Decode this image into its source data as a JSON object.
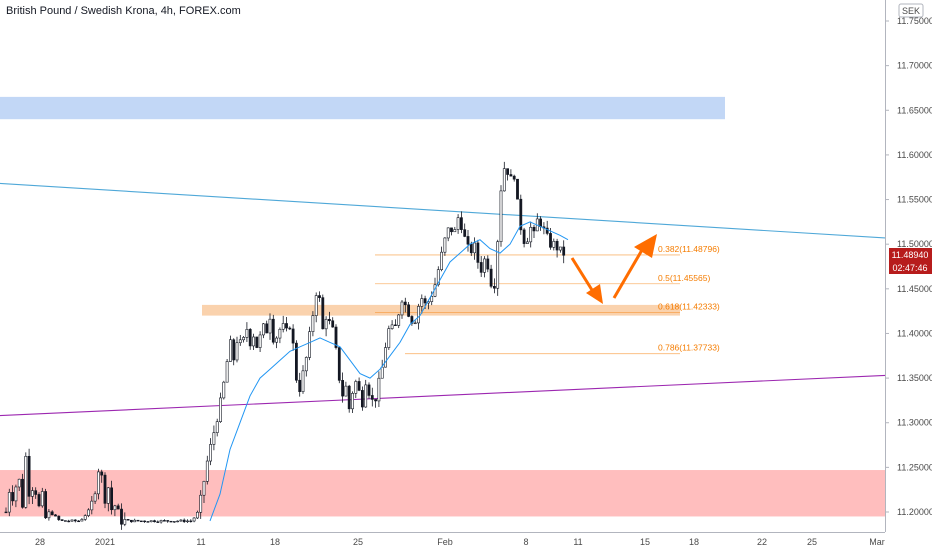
{
  "header": {
    "title": "British Pound / Swedish Krona, 4h, FOREX.com"
  },
  "price_axis": {
    "currency": "SEK",
    "current_price_label": "11.48940",
    "countdown_label": "02:47:46"
  },
  "colors": {
    "candle_up": "#ffffff",
    "candle_down": "#131722",
    "ma_line": "#2196f3",
    "upper_trendline": "#4fa8d8",
    "lower_trendline": "#9c27b0",
    "resistance_zone": "#bbd3f5",
    "support_zone": "#ffb3b3",
    "fib_zone": "#f9cda4",
    "fib_text": "#f57c00",
    "arrow": "#ff6d00",
    "price_tag": "#b71c1c"
  },
  "chart_data": {
    "type": "candlestick",
    "title": "British Pound / Swedish Krona, 4h, FOREX.com",
    "ylim": [
      11.18,
      11.78
    ],
    "y_ticks": [
      "11.20000",
      "11.25000",
      "11.30000",
      "11.35000",
      "11.40000",
      "11.45000",
      "11.50000",
      "11.55000",
      "11.60000",
      "11.65000",
      "11.70000",
      "11.75000"
    ],
    "x_ticks": [
      "28",
      "2021",
      "11",
      "18",
      "25",
      "Feb",
      "8",
      "11",
      "15",
      "18",
      "22",
      "25",
      "Mar"
    ],
    "price_path": [
      [
        0,
        11.195
      ],
      [
        6,
        11.2
      ],
      [
        10,
        11.23
      ],
      [
        14,
        11.21
      ],
      [
        18,
        11.25
      ],
      [
        22,
        11.2
      ],
      [
        26,
        11.265
      ],
      [
        30,
        11.21
      ],
      [
        34,
        11.24
      ],
      [
        38,
        11.2
      ],
      [
        42,
        11.22
      ],
      [
        46,
        11.19
      ],
      [
        50,
        11.2
      ],
      [
        60,
        11.19
      ],
      [
        70,
        11.19
      ],
      [
        80,
        11.19
      ],
      [
        88,
        11.2
      ],
      [
        92,
        11.21
      ],
      [
        96,
        11.23
      ],
      [
        100,
        11.26
      ],
      [
        104,
        11.21
      ],
      [
        108,
        11.23
      ],
      [
        112,
        11.2
      ],
      [
        116,
        11.21
      ],
      [
        120,
        11.19
      ],
      [
        126,
        11.19
      ],
      [
        150,
        11.19
      ],
      [
        165,
        11.19
      ],
      [
        178,
        11.19
      ],
      [
        186,
        11.19
      ],
      [
        192,
        11.19
      ],
      [
        198,
        11.2
      ],
      [
        202,
        11.22
      ],
      [
        206,
        11.25
      ],
      [
        210,
        11.27
      ],
      [
        214,
        11.29
      ],
      [
        218,
        11.31
      ],
      [
        222,
        11.33
      ],
      [
        226,
        11.36
      ],
      [
        230,
        11.39
      ],
      [
        234,
        11.37
      ],
      [
        238,
        11.4
      ],
      [
        242,
        11.38
      ],
      [
        246,
        11.41
      ],
      [
        250,
        11.39
      ],
      [
        254,
        11.4
      ],
      [
        258,
        11.38
      ],
      [
        262,
        11.41
      ],
      [
        266,
        11.4
      ],
      [
        270,
        11.42
      ],
      [
        274,
        11.39
      ],
      [
        278,
        11.4
      ],
      [
        282,
        11.41
      ],
      [
        286,
        11.4
      ],
      [
        290,
        11.41
      ],
      [
        294,
        11.38
      ],
      [
        298,
        11.33
      ],
      [
        302,
        11.35
      ],
      [
        306,
        11.37
      ],
      [
        310,
        11.4
      ],
      [
        314,
        11.43
      ],
      [
        318,
        11.46
      ],
      [
        322,
        11.4
      ],
      [
        326,
        11.42
      ],
      [
        330,
        11.41
      ],
      [
        334,
        11.4
      ],
      [
        338,
        11.36
      ],
      [
        342,
        11.33
      ],
      [
        346,
        11.34
      ],
      [
        350,
        11.31
      ],
      [
        354,
        11.35
      ],
      [
        358,
        11.34
      ],
      [
        362,
        11.32
      ],
      [
        366,
        11.35
      ],
      [
        370,
        11.33
      ],
      [
        374,
        11.32
      ],
      [
        378,
        11.34
      ],
      [
        382,
        11.36
      ],
      [
        386,
        11.39
      ],
      [
        390,
        11.41
      ],
      [
        394,
        11.4
      ],
      [
        398,
        11.42
      ],
      [
        402,
        11.44
      ],
      [
        406,
        11.43
      ],
      [
        410,
        11.42
      ],
      [
        414,
        11.41
      ],
      [
        418,
        11.43
      ],
      [
        422,
        11.44
      ],
      [
        426,
        11.43
      ],
      [
        430,
        11.44
      ],
      [
        434,
        11.45
      ],
      [
        438,
        11.47
      ],
      [
        442,
        11.49
      ],
      [
        446,
        11.51
      ],
      [
        450,
        11.52
      ],
      [
        454,
        11.51
      ],
      [
        458,
        11.53
      ],
      [
        462,
        11.52
      ],
      [
        466,
        11.5
      ],
      [
        470,
        11.49
      ],
      [
        474,
        11.5
      ],
      [
        478,
        11.48
      ],
      [
        482,
        11.47
      ],
      [
        486,
        11.49
      ],
      [
        490,
        11.46
      ],
      [
        494,
        11.45
      ],
      [
        498,
        11.51
      ],
      [
        502,
        11.58
      ],
      [
        506,
        11.59
      ],
      [
        510,
        11.57
      ],
      [
        514,
        11.58
      ],
      [
        518,
        11.54
      ],
      [
        522,
        11.51
      ],
      [
        526,
        11.5
      ],
      [
        530,
        11.52
      ],
      [
        534,
        11.51
      ],
      [
        538,
        11.53
      ],
      [
        542,
        11.52
      ],
      [
        546,
        11.51
      ],
      [
        550,
        11.5
      ],
      [
        554,
        11.5
      ],
      [
        558,
        11.495
      ],
      [
        562,
        11.49
      ],
      [
        566,
        11.489
      ]
    ],
    "moving_average": [
      [
        210,
        11.19
      ],
      [
        220,
        11.22
      ],
      [
        230,
        11.27
      ],
      [
        240,
        11.3
      ],
      [
        250,
        11.33
      ],
      [
        260,
        11.35
      ],
      [
        270,
        11.36
      ],
      [
        280,
        11.37
      ],
      [
        290,
        11.38
      ],
      [
        300,
        11.385
      ],
      [
        310,
        11.39
      ],
      [
        320,
        11.395
      ],
      [
        330,
        11.39
      ],
      [
        340,
        11.385
      ],
      [
        350,
        11.37
      ],
      [
        360,
        11.355
      ],
      [
        370,
        11.35
      ],
      [
        380,
        11.36
      ],
      [
        390,
        11.375
      ],
      [
        400,
        11.39
      ],
      [
        410,
        11.41
      ],
      [
        420,
        11.42
      ],
      [
        430,
        11.44
      ],
      [
        440,
        11.46
      ],
      [
        450,
        11.48
      ],
      [
        460,
        11.49
      ],
      [
        470,
        11.5
      ],
      [
        480,
        11.505
      ],
      [
        490,
        11.495
      ],
      [
        500,
        11.49
      ],
      [
        510,
        11.5
      ],
      [
        520,
        11.52
      ],
      [
        530,
        11.525
      ],
      [
        540,
        11.52
      ],
      [
        550,
        11.515
      ],
      [
        560,
        11.51
      ],
      [
        568,
        11.505
      ]
    ],
    "trendlines": [
      {
        "name": "upper",
        "from": [
          0,
          11.568
        ],
        "to": [
          885,
          11.507
        ]
      },
      {
        "name": "lower",
        "from": [
          0,
          11.308
        ],
        "to": [
          885,
          11.353
        ]
      }
    ],
    "zones": [
      {
        "name": "resistance",
        "y": [
          11.64,
          11.665
        ],
        "x": [
          0,
          725
        ]
      },
      {
        "name": "fib",
        "y": [
          11.42,
          11.432
        ],
        "x": [
          202,
          680
        ]
      },
      {
        "name": "support",
        "y": [
          11.195,
          11.247
        ],
        "x": [
          0,
          885
        ]
      }
    ],
    "fib_levels": [
      {
        "label": "0.382(11.48796)",
        "value": 11.48796
      },
      {
        "label": "0.5(11.45565)",
        "value": 11.45565
      },
      {
        "label": "0.618(11.42333)",
        "value": 11.42333
      },
      {
        "label": "0.786(11.37733)",
        "value": 11.37733
      }
    ]
  }
}
